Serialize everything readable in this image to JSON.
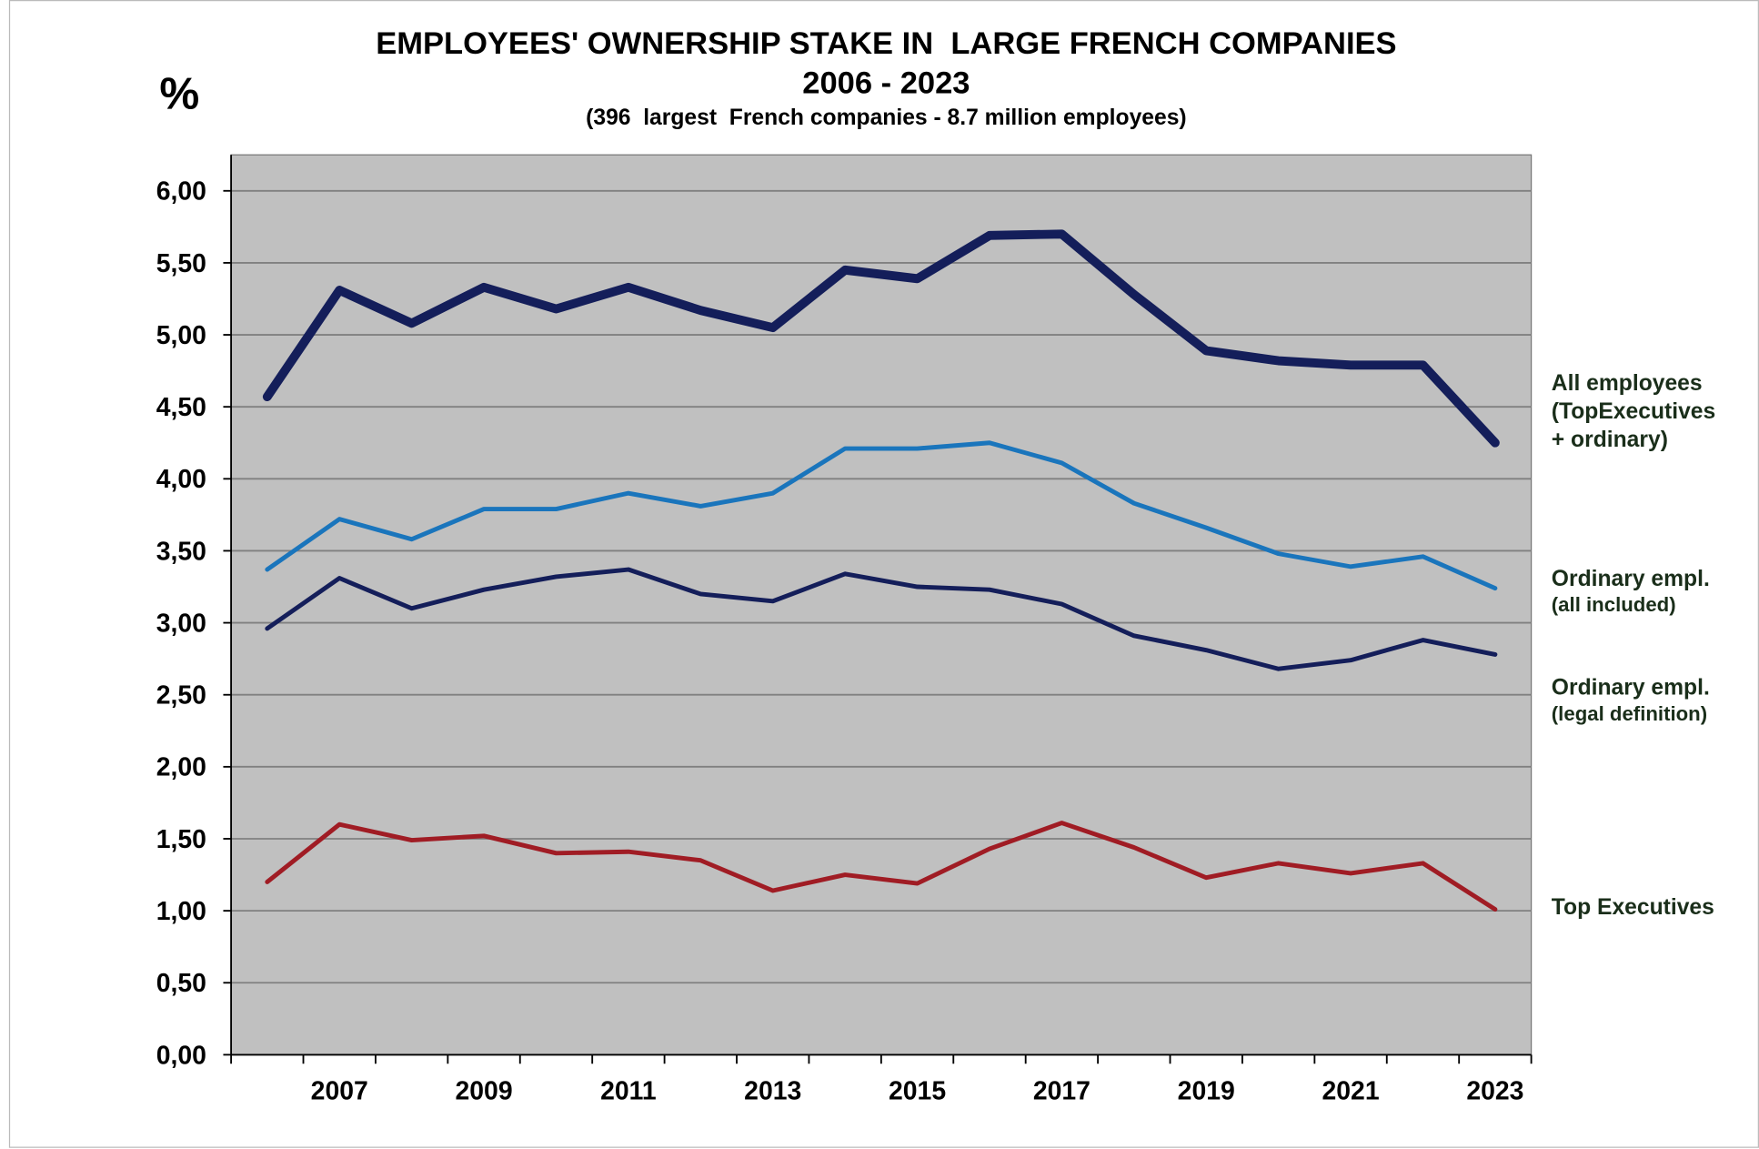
{
  "chart_data": {
    "type": "line",
    "title": "EMPLOYEES' OWNERSHIP STAKE IN  LARGE FRENCH COMPANIES",
    "subtitle": "2006 - 2023",
    "note": "(396  largest  French companies - 8.7 million employees)",
    "y_label": "%",
    "categories": [
      null,
      "2007",
      null,
      "2009",
      null,
      "2011",
      null,
      "2013",
      null,
      "2015",
      null,
      "2017",
      null,
      "2019",
      null,
      "2021",
      null,
      "2023"
    ],
    "ylim": [
      0,
      6.25
    ],
    "yticks": [
      {
        "value": 0,
        "label": "0,00"
      },
      {
        "value": 0.5,
        "label": "0,50"
      },
      {
        "value": 1,
        "label": "1,00"
      },
      {
        "value": 1.5,
        "label": "1,50"
      },
      {
        "value": 2,
        "label": "2,00"
      },
      {
        "value": 2.5,
        "label": "2,50"
      },
      {
        "value": 3,
        "label": "3,00"
      },
      {
        "value": 3.5,
        "label": "3,50"
      },
      {
        "value": 4,
        "label": "4,00"
      },
      {
        "value": 4.5,
        "label": "4,50"
      },
      {
        "value": 5,
        "label": "5,00"
      },
      {
        "value": 5.5,
        "label": "5,50"
      },
      {
        "value": 6,
        "label": "6,00"
      }
    ],
    "grid": true,
    "series": [
      {
        "name": [
          "All employees",
          "(TopExecutives",
          "+ ordinary)"
        ],
        "color": "#141e5a",
        "values": [
          4.57,
          5.31,
          5.08,
          5.33,
          5.18,
          5.33,
          5.17,
          5.05,
          5.45,
          5.39,
          5.69,
          5.7,
          5.28,
          4.89,
          4.82,
          4.79,
          4.79,
          4.25
        ]
      },
      {
        "name": [
          "Ordinary empl.",
          "(all included)"
        ],
        "color": "#1a75bc",
        "values": [
          3.37,
          3.72,
          3.58,
          3.79,
          3.79,
          3.9,
          3.81,
          3.9,
          4.21,
          4.21,
          4.25,
          4.11,
          3.83,
          3.66,
          3.48,
          3.39,
          3.46,
          3.24
        ]
      },
      {
        "name": [
          "Ordinary empl.",
          "(legal definition)"
        ],
        "color": "#141e5a",
        "values": [
          2.96,
          3.31,
          3.1,
          3.23,
          3.32,
          3.37,
          3.2,
          3.15,
          3.34,
          3.25,
          3.23,
          3.13,
          2.91,
          2.81,
          2.68,
          2.74,
          2.88,
          2.78
        ]
      },
      {
        "name": [
          "Top Executives"
        ],
        "color": "#a01c24",
        "values": [
          1.2,
          1.6,
          1.49,
          1.52,
          1.4,
          1.41,
          1.35,
          1.14,
          1.25,
          1.19,
          1.43,
          1.61,
          1.44,
          1.23,
          1.33,
          1.26,
          1.33,
          1.01
        ]
      }
    ]
  }
}
